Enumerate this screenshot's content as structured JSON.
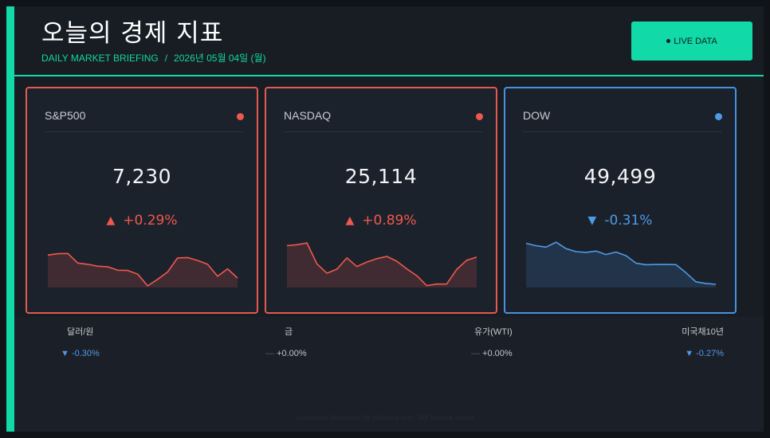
{
  "header": {
    "title": "오늘의 경제 지표",
    "subtitle_label": "DAILY MARKET BRIEFING",
    "subtitle_sep": "/",
    "date": "2026년 05월 04일 (월)",
    "live_button": "LIVE DATA",
    "accent_color": "#11d9a8"
  },
  "indices": [
    {
      "name": "S&P500",
      "value": "7,230",
      "arrow": "▲",
      "change": "+0.29%",
      "direction": "up",
      "color": "#f0584c",
      "trend": [
        42.1,
        43.9,
        44.2,
        31.8,
        30.1,
        27.6,
        26.9,
        22.4,
        22.1,
        17.4,
        2.1,
        10.7,
        20.2,
        38.4,
        38.9,
        35.1,
        30.3,
        14.6,
        24.2,
        12.3
      ]
    },
    {
      "name": "NASDAQ",
      "value": "25,114",
      "arrow": "▲",
      "change": "+0.89%",
      "direction": "up",
      "color": "#f0584c",
      "trend": [
        54.3,
        55.5,
        57.8,
        30.7,
        18.5,
        23.8,
        38.4,
        27.2,
        33.0,
        37.4,
        40.3,
        34.1,
        24.2,
        15.4,
        2.4,
        4.4,
        4.4,
        23.4,
        35.4,
        39.4
      ]
    },
    {
      "name": "DOW",
      "value": "49,499",
      "arrow": "▼",
      "change": "-0.31%",
      "direction": "down",
      "color": "#4d9ae8",
      "trend": [
        57.4,
        54.2,
        52.4,
        58.9,
        50.5,
        46.6,
        45.6,
        47.3,
        42.8,
        46.0,
        41.4,
        31.7,
        29.6,
        29.9,
        29.9,
        29.7,
        19.3,
        7.4,
        5.3,
        4.1
      ]
    }
  ],
  "secondary": [
    {
      "name": "달러/원",
      "arrow": "▼",
      "change": "-0.30%",
      "color": "#4d9ae8"
    },
    {
      "name": "금",
      "arrow": "—",
      "change": "+0.00%",
      "color": "#bfc3c9"
    },
    {
      "name": "유가(WTI)",
      "arrow": "—",
      "change": "+0.00%",
      "color": "#bfc3c9"
    },
    {
      "name": "미국채10년",
      "arrow": "▼",
      "change": "-0.27%",
      "color": "#4d9ae8"
    }
  ],
  "footer": {
    "note": "Investment information for reference only  ·  Not financial advice"
  }
}
